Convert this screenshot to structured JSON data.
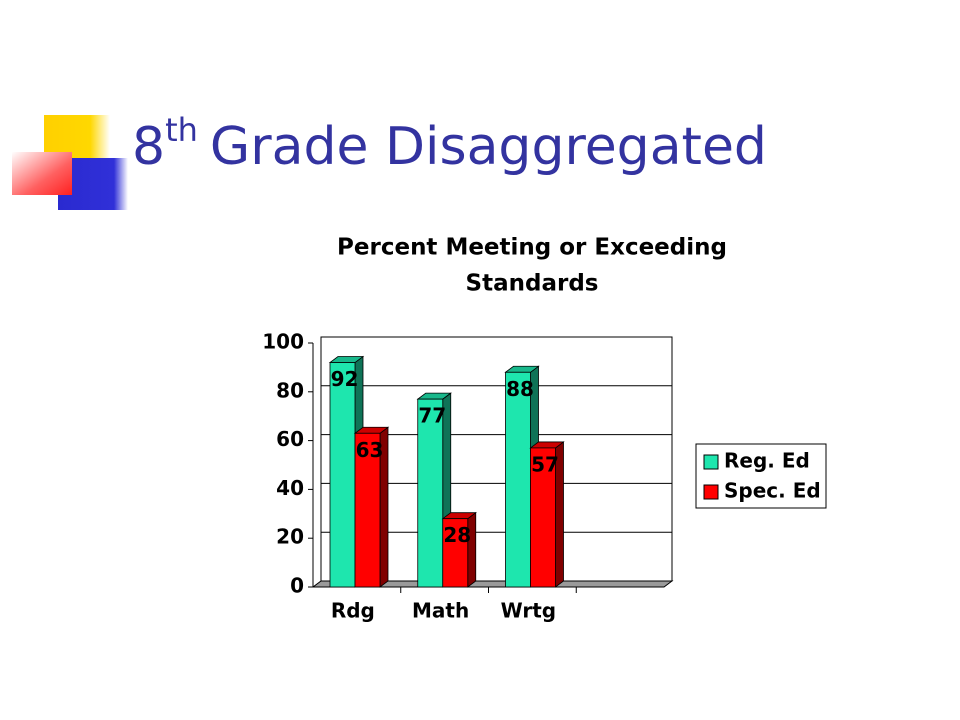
{
  "slide_title": {
    "number": "8",
    "suffix": "th",
    "text": "Grade Disaggregated"
  },
  "chart_data": {
    "type": "bar",
    "title": [
      "Percent Meeting or Exceeding",
      "Standards"
    ],
    "categories": [
      "Rdg",
      "Math",
      "Wrtg",
      null
    ],
    "series": [
      {
        "name": "Reg. Ed",
        "color": "#1ee6ae",
        "values": [
          92,
          77,
          88,
          null
        ]
      },
      {
        "name": "Spec. Ed",
        "color": "#ff0000",
        "values": [
          63,
          28,
          57,
          null
        ]
      }
    ],
    "ylim": [
      0,
      100
    ],
    "yticks": [
      0,
      20,
      40,
      60,
      80,
      100
    ],
    "grid": true,
    "legend": "right"
  }
}
